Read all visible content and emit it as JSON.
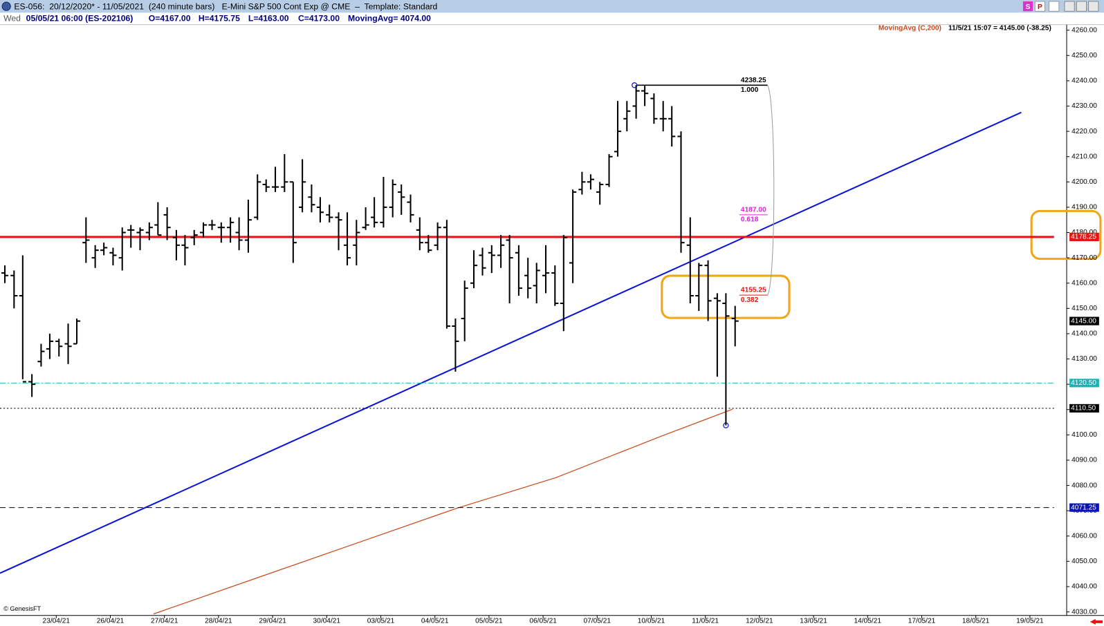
{
  "chart_data": {
    "type": "ohlc",
    "title": "ES-056:  20/12/2020* - 11/05/2021  (240 minute bars)   E-Mini S&P 500 Cont Exp @ CME  –  Template: Standard",
    "toolbar_buttons": [
      "S",
      "P"
    ],
    "info": [
      "Wed",
      "05/05/21 06:00 (ES-202106)",
      "O=4167.00",
      "H=4175.75",
      "L=4163.00",
      "C=4173.00",
      "MovingAvg= 4074.00"
    ],
    "indicator_label": "MovingAvg (C,200)",
    "status": "11/5/21 15:07 = 4145.00 (-38.25)",
    "credit": "© GenesisFT",
    "xlim": [
      -1.04,
      18.68
    ],
    "ylim": [
      4028.6,
      4262.2
    ],
    "xticks": [
      {
        "value": 0,
        "label": "23/04/21"
      },
      {
        "value": 1,
        "label": "26/04/21"
      },
      {
        "value": 2,
        "label": "27/04/21"
      },
      {
        "value": 3,
        "label": "28/04/21"
      },
      {
        "value": 4,
        "label": "29/04/21"
      },
      {
        "value": 5,
        "label": "30/04/21"
      },
      {
        "value": 6,
        "label": "03/05/21"
      },
      {
        "value": 7,
        "label": "04/05/21"
      },
      {
        "value": 8,
        "label": "05/05/21"
      },
      {
        "value": 9,
        "label": "06/05/21"
      },
      {
        "value": 10,
        "label": "07/05/21"
      },
      {
        "value": 11,
        "label": "10/05/21"
      },
      {
        "value": 12,
        "label": "11/05/21"
      },
      {
        "value": 13,
        "label": "12/05/21"
      },
      {
        "value": 14,
        "label": "13/05/21"
      },
      {
        "value": 15,
        "label": "14/05/21"
      },
      {
        "value": 16,
        "label": "17/05/21"
      },
      {
        "value": 17,
        "label": "18/05/21"
      },
      {
        "value": 18,
        "label": "19/05/21"
      }
    ],
    "yticks": [
      {
        "value": 4030,
        "label": "4030.00"
      },
      {
        "value": 4040,
        "label": "4040.00"
      },
      {
        "value": 4050,
        "label": "4050.00"
      },
      {
        "value": 4060,
        "label": "4060.00"
      },
      {
        "value": 4070,
        "label": "4070.00"
      },
      {
        "value": 4080,
        "label": "4080.00"
      },
      {
        "value": 4090,
        "label": "4090.00"
      },
      {
        "value": 4100,
        "label": "4100.00"
      },
      {
        "value": 4110,
        "label": "4110.00"
      },
      {
        "value": 4120,
        "label": "4120.00"
      },
      {
        "value": 4130,
        "label": "4130.00"
      },
      {
        "value": 4140,
        "label": "4140.00"
      },
      {
        "value": 4150,
        "label": "4150.00"
      },
      {
        "value": 4160,
        "label": "4160.00"
      },
      {
        "value": 4170,
        "label": "4170.00"
      },
      {
        "value": 4180,
        "label": "4180.00"
      },
      {
        "value": 4190,
        "label": "4190.00"
      },
      {
        "value": 4200,
        "label": "4200.00"
      },
      {
        "value": 4210,
        "label": "4210.00"
      },
      {
        "value": 4220,
        "label": "4220.00"
      },
      {
        "value": 4230,
        "label": "4230.00"
      },
      {
        "value": 4240,
        "label": "4240.00"
      },
      {
        "value": 4250,
        "label": "4250.00"
      },
      {
        "value": 4260,
        "label": "4260.00"
      }
    ],
    "color": "#000000",
    "x": [
      -0.95,
      -0.78,
      -0.62,
      -0.45,
      -0.28,
      -0.12,
      0.05,
      0.22,
      0.38,
      0.55,
      0.72,
      0.88,
      1.05,
      1.22,
      1.38,
      1.55,
      1.72,
      1.88,
      2.05,
      2.22,
      2.38,
      2.55,
      2.72,
      2.88,
      3.05,
      3.22,
      3.38,
      3.55,
      3.72,
      3.88,
      4.05,
      4.22,
      4.38,
      4.55,
      4.72,
      4.88,
      5.05,
      5.22,
      5.38,
      5.55,
      5.72,
      5.88,
      6.05,
      6.22,
      6.38,
      6.55,
      6.72,
      6.88,
      7.05,
      7.22,
      7.38,
      7.55,
      7.72,
      7.88,
      8.05,
      8.22,
      8.38,
      8.55,
      8.72,
      8.88,
      9.05,
      9.22,
      9.38,
      9.55,
      9.72,
      9.88,
      10.05,
      10.22,
      10.38,
      10.55,
      10.72,
      10.88,
      11.05,
      11.22,
      11.38,
      11.55,
      11.72,
      11.88,
      12.05,
      12.22,
      12.38,
      12.55
    ],
    "open": [
      4164,
      4163,
      4155,
      4121,
      4129,
      4134,
      4137,
      4136,
      4136,
      4176,
      4170,
      4173,
      4172,
      4170,
      4181,
      4180,
      4180,
      4183,
      4187,
      4178,
      4175,
      4178,
      4180,
      4183,
      4182,
      4182,
      4180,
      4177,
      4186,
      4199,
      4198,
      4198,
      4200,
      4190,
      4194,
      4190,
      4187,
      4186,
      4175,
      4175,
      4182,
      4186,
      4184,
      4190,
      4196,
      4192,
      4181,
      4176,
      4175,
      4182,
      4143,
      4146,
      4160,
      4171,
      4172,
      4171,
      4177,
      4172,
      4163,
      4159,
      4163,
      4164,
      4152,
      4168,
      4197,
      4200,
      4196,
      4199,
      4212,
      4225,
      4230,
      4236,
      4233,
      4225,
      4225,
      4218,
      4175,
      4155,
      4167,
      4154,
      4152,
      4146
    ],
    "high": [
      4167,
      4165,
      4171,
      4124,
      4136,
      4140,
      4138,
      4144,
      4146,
      4186,
      4175,
      4176,
      4174,
      4182,
      4183,
      4182,
      4184,
      4192,
      4190,
      4181,
      4179,
      4181,
      4184,
      4185,
      4184,
      4186,
      4186,
      4193,
      4203,
      4201,
      4206,
      4211,
      4200,
      4209,
      4199,
      4194,
      4191,
      4188,
      4188,
      4185,
      4190,
      4194,
      4202,
      4201,
      4199,
      4195,
      4186,
      4179,
      4184,
      4185,
      4146,
      4161,
      4173,
      4174,
      4175,
      4179,
      4179,
      4175,
      4170,
      4168,
      4175,
      4167,
      4179,
      4197,
      4204,
      4203,
      4200,
      4211,
      4232,
      4232,
      4238.25,
      4238,
      4235,
      4232,
      4230,
      4220,
      4186,
      4168,
      4169,
      4156,
      4156,
      4151
    ],
    "low": [
      4160,
      4150,
      4122,
      4115,
      4127,
      4130,
      4131,
      4128,
      4136,
      4168,
      4166,
      4171,
      4167,
      4165,
      4174,
      4173,
      4177,
      4179,
      4177,
      4169,
      4167,
      4175,
      4178,
      4181,
      4176,
      4176,
      4173,
      4172,
      4185,
      4196,
      4196,
      4196,
      4168,
      4188,
      4188,
      4184,
      4184,
      4173,
      4167,
      4167,
      4181,
      4182,
      4182,
      4186,
      4187,
      4184,
      4173,
      4172,
      4173,
      4142,
      4125,
      4137,
      4158,
      4163,
      4164,
      4166,
      4152,
      4155,
      4154,
      4152,
      4156,
      4151,
      4141,
      4160,
      4195,
      4197,
      4191,
      4198,
      4210,
      4220,
      4225,
      4230,
      4223,
      4220,
      4214,
      4172,
      4152,
      4149,
      4145,
      4123,
      4103.75,
      4135
    ],
    "close": [
      4163,
      4155,
      4121,
      4120,
      4133,
      4137,
      4135,
      4135,
      4145,
      4177,
      4173,
      4174,
      4171,
      4180,
      4181,
      4181,
      4182,
      4179,
      4182,
      4175,
      4174,
      4179,
      4183,
      4183,
      4182,
      4184,
      4177,
      4185,
      4200,
      4198,
      4198,
      4200,
      4176,
      4200,
      4191,
      4188,
      4186,
      4185,
      4170,
      4180,
      4183,
      4184,
      4190,
      4199,
      4194,
      4187,
      4176,
      4173,
      4182,
      4143,
      4137,
      4158,
      4167,
      4166,
      4171,
      4175,
      4170,
      4158,
      4158,
      4165,
      4164,
      4152,
      4178,
      4196,
      4200,
      4201,
      4199,
      4210,
      4220,
      4228,
      4236,
      4235,
      4225,
      4225,
      4218,
      4176,
      4155,
      4167,
      4153,
      4153,
      4147,
      4145
    ],
    "moving_average": {
      "color": "#c9471a",
      "x": [
        1.8,
        7.42,
        9.24,
        11.2,
        12.5
      ],
      "values": [
        4029.2,
        4071.1,
        4083.1,
        4099.6,
        4110.1
      ]
    },
    "trendline": {
      "color": "#0a14d8",
      "x": [
        -1.04,
        17.84
      ],
      "values": [
        4045.3,
        4227.5
      ]
    },
    "price_markers": [
      {
        "value": 4178.25,
        "label": "4178.25",
        "color": "#e8140f",
        "style": "solid",
        "bg": "#e8140f",
        "fg": "#ffffff"
      },
      {
        "value": 4145,
        "label": "4145.00",
        "color": "none",
        "style": "none",
        "bg": "#000000",
        "fg": "#ffffff"
      },
      {
        "value": 4120.5,
        "label": "4120.50",
        "color": "#1ab4b4",
        "style": "dashdot",
        "bg": "#1ab4b4",
        "fg": "#ffffff"
      },
      {
        "value": 4110.5,
        "label": "4110.50",
        "color": "#000000",
        "style": "dotted",
        "bg": "#000000",
        "fg": "#ffffff"
      },
      {
        "value": 4071.25,
        "label": "4071.25",
        "color": "#000000",
        "style": "dashed",
        "bg": "#0a14b4",
        "fg": "#ffffff"
      }
    ],
    "fib": {
      "anchors": {
        "x": [
          10.69,
          12.38
        ],
        "values": [
          4238.25,
          4103.75
        ]
      },
      "line_end": 13.15,
      "levels": [
        {
          "value": 4238.25,
          "label": "4238.25",
          "ratio": {
            "value": 1,
            "label": "1.000"
          },
          "color": "#000000"
        },
        {
          "value": 4187,
          "label": "4187.00",
          "ratio": 0.618,
          "color": "#e020e0"
        },
        {
          "value": 4155.25,
          "label": "4155.25",
          "ratio": 0.382,
          "color": "#e8140f"
        }
      ]
    }
  }
}
